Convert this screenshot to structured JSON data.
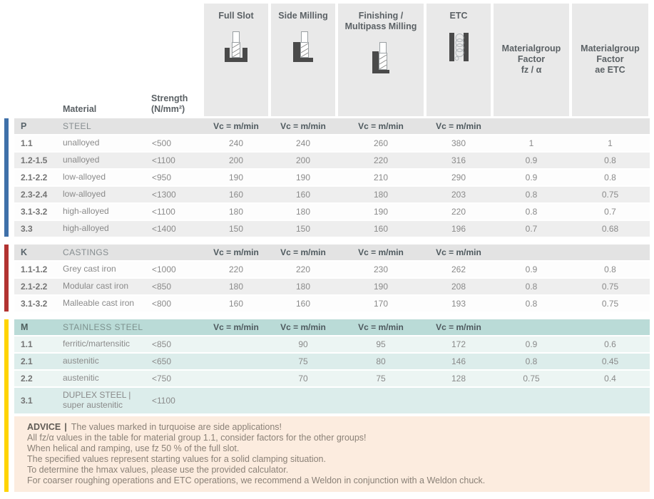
{
  "labels": {
    "material": "Material",
    "strength": "Strength\n(N/mm²)",
    "vc": "Vc = m/min"
  },
  "header": {
    "columns": [
      {
        "title": "Full Slot",
        "icon": "full-slot-icon"
      },
      {
        "title": "Side Milling",
        "icon": "side-milling-icon"
      },
      {
        "title": "Finishing / Multipass Milling",
        "icon": "finishing-multipass-icon"
      },
      {
        "title": "ETC",
        "icon": "etc-icon"
      },
      {
        "title": "Materialgroup\nFactor\nfz / α"
      },
      {
        "title": "Materialgroup\nFactor\nae ETC"
      }
    ]
  },
  "sections": [
    {
      "id": "P",
      "title": "STEEL",
      "accent": "#3f70a9",
      "theme": "grey",
      "rows": [
        [
          "1.1",
          "unalloyed",
          "<500",
          "240",
          "240",
          "260",
          "380",
          "1",
          "1"
        ],
        [
          "1.2-1.5",
          "unalloyed",
          "<1100",
          "200",
          "200",
          "220",
          "316",
          "0.9",
          "0.8"
        ],
        [
          "2.1-2.2",
          "low-alloyed",
          "<950",
          "190",
          "190",
          "210",
          "290",
          "0.9",
          "0.8"
        ],
        [
          "2.3-2.4",
          "low-alloyed",
          "<1300",
          "160",
          "160",
          "180",
          "203",
          "0.8",
          "0.75"
        ],
        [
          "3.1-3.2",
          "high-alloyed",
          "<1100",
          "180",
          "180",
          "190",
          "220",
          "0.8",
          "0.7"
        ],
        [
          "3.3",
          "high-alloyed",
          "<1400",
          "150",
          "150",
          "160",
          "196",
          "0.7",
          "0.68"
        ]
      ]
    },
    {
      "id": "K",
      "title": "CASTINGS",
      "accent": "#b23331",
      "theme": "grey",
      "rows": [
        [
          "1.1-1.2",
          "Grey cast iron",
          "<1000",
          "220",
          "220",
          "230",
          "262",
          "0.9",
          "0.8"
        ],
        [
          "2.1-2.2",
          "Modular cast iron",
          "<850",
          "180",
          "180",
          "190",
          "208",
          "0.8",
          "0.75"
        ],
        [
          "3.1-3.2",
          "Malleable cast iron",
          "<800",
          "160",
          "160",
          "170",
          "193",
          "0.8",
          "0.75"
        ]
      ]
    },
    {
      "id": "M",
      "title": "STAINLESS STEEL",
      "accent": "#ffd403",
      "theme": "teal",
      "rows": [
        [
          "1.1",
          "ferritic/martensitic",
          "<850",
          "",
          "90",
          "95",
          "172",
          "0.9",
          "0.6"
        ],
        [
          "2.1",
          "austenitic",
          "<650",
          "",
          "75",
          "80",
          "146",
          "0.8",
          "0.45"
        ],
        [
          "2.2",
          "austenitic",
          "<750",
          "",
          "70",
          "75",
          "128",
          "0.75",
          "0.4"
        ],
        [
          "3.1",
          "DUPLEX STEEL |\nsuper austenitic",
          "<1100",
          "",
          "",
          "",
          "",
          "",
          ""
        ]
      ]
    }
  ],
  "advice": {
    "label": "ADVICE",
    "separator": "|",
    "accent": "#ffd403",
    "lines": [
      "The values marked in turquoise are side applications!",
      "All fz/α values in the table for material group 1.1, consider factors for the other groups!",
      "When helical and ramping, use fz 50 % of the full slot.",
      "The specified values represent starting values for a solid clamping situation.",
      "To determine the hmax values, please use the provided calculator.",
      "For coarser roughing operations and ETC operations, we recommend a Weldon in conjunction with a Weldon chuck."
    ]
  }
}
